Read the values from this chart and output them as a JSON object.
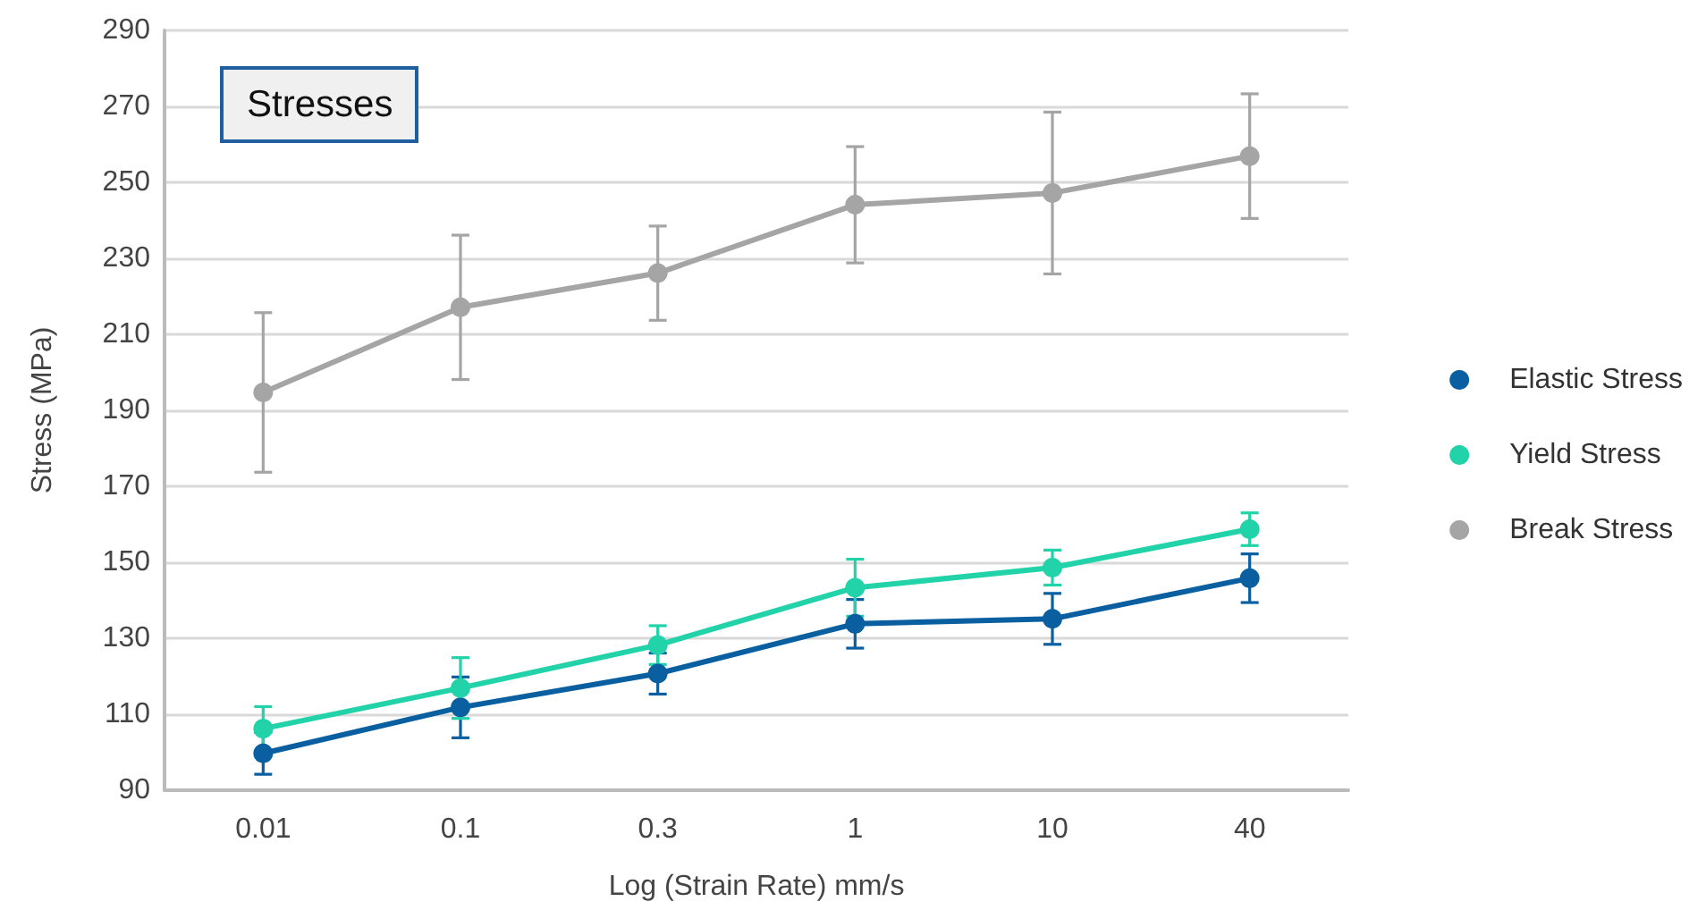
{
  "chart_data": {
    "type": "line",
    "title": "Stresses",
    "xlabel": "Log (Strain Rate) mm/s",
    "ylabel": "Stress (MPa)",
    "categories": [
      "0.01",
      "0.1",
      "0.3",
      "1",
      "10",
      "40"
    ],
    "series": [
      {
        "name": "Elastic Stress",
        "color": "#0a5fa0",
        "values": [
          99.7,
          111.8,
          120.7,
          133.8,
          135.1,
          145.8
        ],
        "errors": [
          5.5,
          8,
          5.4,
          6.4,
          6.7,
          6.4
        ]
      },
      {
        "name": "Yield Stress",
        "color": "#22d3aa",
        "values": [
          106.2,
          116.9,
          128.2,
          143.3,
          148.6,
          158.7
        ],
        "errors": [
          5.8,
          8,
          5.1,
          7.5,
          4.6,
          4.3
        ]
      },
      {
        "name": "Break Stress",
        "color": "#a5a5a5",
        "values": [
          194.7,
          217.1,
          226.1,
          244.1,
          247.2,
          256.9
        ],
        "errors": [
          21,
          19,
          12.4,
          15.3,
          21.3,
          16.4
        ]
      }
    ],
    "ylim": [
      90,
      290
    ],
    "yticks": [
      90,
      110,
      130,
      150,
      170,
      190,
      210,
      230,
      250,
      270,
      290
    ],
    "grid": "y",
    "legend": "right",
    "marker": "circle",
    "line_style": "solid"
  }
}
